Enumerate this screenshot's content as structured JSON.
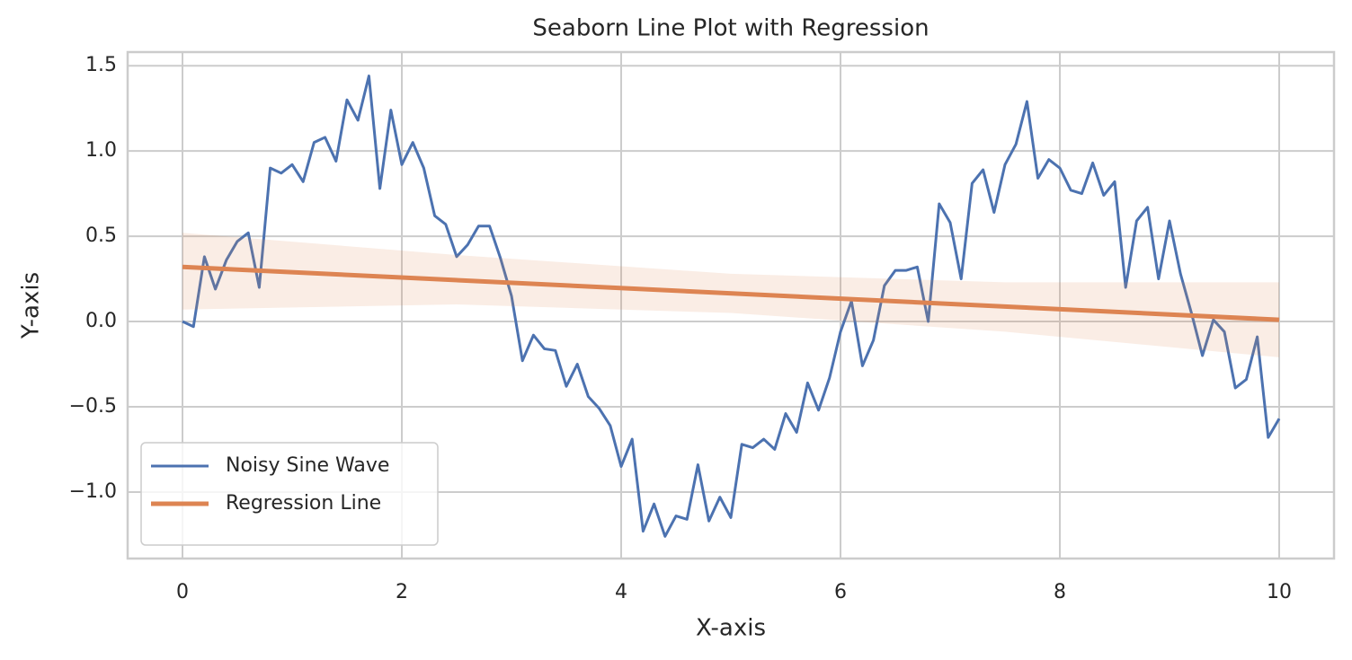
{
  "chart_data": {
    "type": "line",
    "title": "Seaborn Line Plot with Regression",
    "xlabel": "X-axis",
    "ylabel": "Y-axis",
    "xlim": [
      -0.5,
      10.5
    ],
    "ylim": [
      -1.39,
      1.58
    ],
    "xticks": [
      0,
      2,
      4,
      6,
      8,
      10
    ],
    "yticks": [
      {
        "value": -1.0,
        "label": "−1.0"
      },
      {
        "value": -0.5,
        "label": "−0.5"
      },
      {
        "value": 0.0,
        "label": "0.0"
      },
      0.5,
      {
        "value": 1.0,
        "label": "1.0"
      },
      1.5
    ],
    "grid": true,
    "legend": "lower left",
    "series": [
      {
        "name": "Noisy Sine Wave",
        "color": "#4c72b0",
        "x": [
          0,
          0.1,
          0.2,
          0.3,
          0.4,
          0.5,
          0.6,
          0.7,
          0.8,
          0.9,
          1.0,
          1.1,
          1.2,
          1.3,
          1.4,
          1.5,
          1.6,
          1.7,
          1.8,
          1.9,
          2.0,
          2.1,
          2.2,
          2.3,
          2.4,
          2.5,
          2.6,
          2.7,
          2.8,
          2.9,
          3.0,
          3.1,
          3.2,
          3.3,
          3.4,
          3.5,
          3.6,
          3.7,
          3.8,
          3.9,
          4.0,
          4.1,
          4.2,
          4.3,
          4.4,
          4.5,
          4.6,
          4.7,
          4.8,
          4.9,
          5.0,
          5.1,
          5.2,
          5.3,
          5.4,
          5.5,
          5.6,
          5.7,
          5.8,
          5.9,
          6.0,
          6.1,
          6.2,
          6.3,
          6.4,
          6.5,
          6.6,
          6.7,
          6.8,
          6.9,
          7.0,
          7.1,
          7.2,
          7.3,
          7.4,
          7.5,
          7.6,
          7.7,
          7.8,
          7.9,
          8.0,
          8.1,
          8.2,
          8.3,
          8.4,
          8.5,
          8.6,
          8.7,
          8.8,
          8.9,
          9.0,
          9.1,
          9.2,
          9.3,
          9.4,
          9.5,
          9.6,
          9.7,
          9.8,
          9.9,
          10.0
        ],
        "values": [
          0.0,
          -0.03,
          0.38,
          0.19,
          0.36,
          0.47,
          0.52,
          0.2,
          0.9,
          0.87,
          0.92,
          0.82,
          1.05,
          1.08,
          0.94,
          1.3,
          1.18,
          1.44,
          0.78,
          1.24,
          0.92,
          1.05,
          0.9,
          0.62,
          0.57,
          0.38,
          0.45,
          0.56,
          0.56,
          0.37,
          0.15,
          -0.23,
          -0.08,
          -0.16,
          -0.17,
          -0.38,
          -0.25,
          -0.44,
          -0.51,
          -0.61,
          -0.85,
          -0.69,
          -1.23,
          -1.07,
          -1.26,
          -1.14,
          -1.16,
          -0.84,
          -1.17,
          -1.03,
          -1.15,
          -0.72,
          -0.74,
          -0.69,
          -0.75,
          -0.54,
          -0.65,
          -0.36,
          -0.52,
          -0.33,
          -0.06,
          0.12,
          -0.26,
          -0.11,
          0.21,
          0.3,
          0.3,
          0.32,
          0.0,
          0.69,
          0.58,
          0.25,
          0.81,
          0.89,
          0.64,
          0.92,
          1.04,
          1.29,
          0.84,
          0.95,
          0.9,
          0.77,
          0.75,
          0.93,
          0.74,
          0.82,
          0.2,
          0.59,
          0.67,
          0.25,
          0.59,
          0.28,
          0.05,
          -0.2,
          0.01,
          -0.06,
          -0.39,
          -0.34,
          -0.09,
          -0.68,
          -0.57
        ]
      },
      {
        "name": "Regression Line",
        "color": "#dd8452",
        "x": [
          0,
          10
        ],
        "values": [
          0.32,
          0.01
        ],
        "band": {
          "x": [
            0,
            2.5,
            5,
            7.5,
            10
          ],
          "lower": [
            0.07,
            0.1,
            0.05,
            -0.06,
            -0.21
          ],
          "upper": [
            0.52,
            0.39,
            0.28,
            0.23,
            0.23
          ]
        }
      }
    ]
  }
}
